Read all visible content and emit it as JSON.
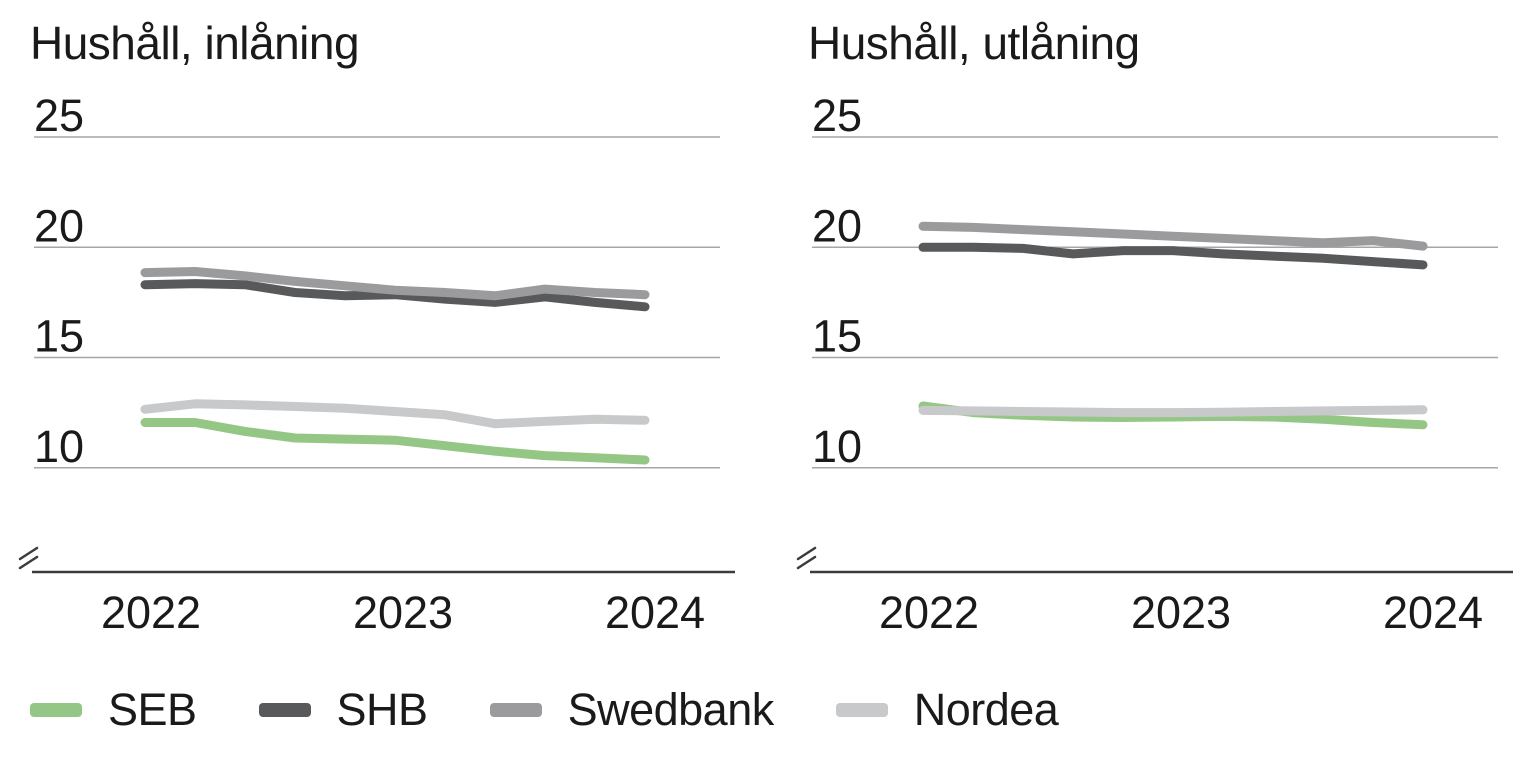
{
  "colors": {
    "background": "#FFFFFF",
    "grid": "#A6A6A6",
    "axis": "#3C3C3C",
    "text": "#1A1A1A",
    "seb_green": "#94C785",
    "shb_dark_gray": "#58595B",
    "swedbank_gray": "#9B9B9D",
    "nordea_light_gray": "#C8C9CA"
  },
  "legend": {
    "items": [
      {
        "label": "SEB",
        "color": "#94C785"
      },
      {
        "label": "SHB",
        "color": "#58595B"
      },
      {
        "label": "Swedbank",
        "color": "#9B9B9D"
      },
      {
        "label": "Nordea",
        "color": "#C8C9CA"
      }
    ]
  },
  "chart_data": [
    {
      "type": "line",
      "title": "Hushåll, inlåning",
      "y_ticks": [
        25,
        20,
        15,
        10
      ],
      "ylim_shown": [
        10,
        25
      ],
      "axis_break": true,
      "grid": "horizontal",
      "legend_position": "bottom",
      "x_ticks": [
        "2022",
        "2023",
        "2024"
      ],
      "x": [
        2022.0,
        2022.2,
        2022.4,
        2022.6,
        2022.8,
        2023.0,
        2023.2,
        2023.4,
        2023.6,
        2023.8,
        2024.0
      ],
      "series": [
        {
          "name": "SEB",
          "values": [
            12.05,
            12.05,
            11.65,
            11.35,
            11.3,
            11.25,
            11.0,
            10.75,
            10.55,
            10.45,
            10.35
          ]
        },
        {
          "name": "SHB",
          "values": [
            18.3,
            18.35,
            18.3,
            17.95,
            17.8,
            17.85,
            17.65,
            17.5,
            17.75,
            17.5,
            17.3
          ]
        },
        {
          "name": "Swedbank",
          "values": [
            18.85,
            18.9,
            18.7,
            18.45,
            18.25,
            18.05,
            17.95,
            17.8,
            18.1,
            17.95,
            17.85
          ]
        },
        {
          "name": "Nordea",
          "values": [
            12.65,
            12.9,
            12.85,
            12.78,
            12.7,
            12.55,
            12.4,
            12.0,
            12.1,
            12.2,
            12.15
          ]
        }
      ]
    },
    {
      "type": "line",
      "title": "Hushåll, utlåning",
      "y_ticks": [
        25,
        20,
        15,
        10
      ],
      "ylim_shown": [
        10,
        25
      ],
      "axis_break": true,
      "grid": "horizontal",
      "legend_position": "bottom",
      "x_ticks": [
        "2022",
        "2023",
        "2024"
      ],
      "x": [
        2022.0,
        2022.2,
        2022.4,
        2022.6,
        2022.8,
        2023.0,
        2023.2,
        2023.4,
        2023.6,
        2023.8,
        2024.0
      ],
      "series": [
        {
          "name": "SEB",
          "values": [
            12.8,
            12.5,
            12.38,
            12.3,
            12.28,
            12.3,
            12.33,
            12.3,
            12.2,
            12.05,
            11.95
          ]
        },
        {
          "name": "SHB",
          "values": [
            20.0,
            20.0,
            19.95,
            19.7,
            19.85,
            19.85,
            19.7,
            19.6,
            19.5,
            19.35,
            19.2
          ]
        },
        {
          "name": "Swedbank",
          "values": [
            20.95,
            20.9,
            20.8,
            20.7,
            20.6,
            20.5,
            20.4,
            20.3,
            20.2,
            20.3,
            20.05
          ]
        },
        {
          "name": "Nordea",
          "values": [
            12.6,
            12.58,
            12.55,
            12.53,
            12.5,
            12.5,
            12.52,
            12.55,
            12.58,
            12.6,
            12.63
          ]
        }
      ]
    }
  ]
}
